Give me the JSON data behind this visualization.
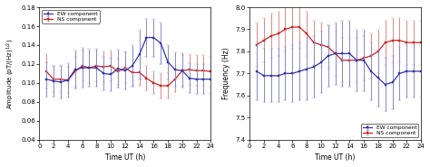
{
  "left": {
    "xlabel": "Time UT (h)",
    "ylabel": "Amplitude (pT/(Hz)¹/²)",
    "ylim": [
      0.04,
      0.18
    ],
    "xlim": [
      0,
      24
    ],
    "yticks": [
      0.04,
      0.06,
      0.08,
      0.1,
      0.12,
      0.14,
      0.16,
      0.18
    ],
    "xticks": [
      0,
      2,
      4,
      6,
      8,
      10,
      12,
      14,
      16,
      18,
      20,
      22,
      24
    ],
    "ew_x": [
      1,
      2,
      3,
      4,
      5,
      6,
      7,
      8,
      9,
      10,
      11,
      12,
      13,
      14,
      15,
      16,
      17,
      18,
      19,
      20,
      21,
      22,
      23,
      24
    ],
    "ew_y": [
      0.104,
      0.102,
      0.101,
      0.103,
      0.114,
      0.116,
      0.116,
      0.116,
      0.11,
      0.109,
      0.115,
      0.113,
      0.118,
      0.13,
      0.148,
      0.148,
      0.142,
      0.122,
      0.114,
      0.113,
      0.105,
      0.104,
      0.104,
      0.104
    ],
    "ew_yerr": [
      0.018,
      0.016,
      0.017,
      0.018,
      0.02,
      0.021,
      0.02,
      0.02,
      0.018,
      0.018,
      0.02,
      0.02,
      0.022,
      0.026,
      0.02,
      0.02,
      0.022,
      0.018,
      0.018,
      0.018,
      0.016,
      0.016,
      0.016,
      0.016
    ],
    "ns_x": [
      1,
      2,
      3,
      4,
      5,
      6,
      7,
      8,
      9,
      10,
      11,
      12,
      13,
      14,
      15,
      16,
      17,
      18,
      19,
      20,
      21,
      22,
      23,
      24
    ],
    "ns_y": [
      0.112,
      0.104,
      0.104,
      0.103,
      0.112,
      0.118,
      0.116,
      0.118,
      0.117,
      0.118,
      0.112,
      0.116,
      0.111,
      0.111,
      0.105,
      0.1,
      0.097,
      0.097,
      0.104,
      0.113,
      0.114,
      0.113,
      0.113,
      0.112
    ],
    "ns_yerr": [
      0.018,
      0.014,
      0.014,
      0.014,
      0.016,
      0.016,
      0.016,
      0.016,
      0.016,
      0.016,
      0.014,
      0.016,
      0.014,
      0.014,
      0.013,
      0.012,
      0.013,
      0.013,
      0.014,
      0.016,
      0.016,
      0.016,
      0.016,
      0.016
    ],
    "ew_color": "#3333aa",
    "ew_ecolor": "#8888cc",
    "ns_color": "#cc2222",
    "ns_ecolor": "#dd8888",
    "legend_loc": "upper left"
  },
  "right": {
    "xlabel": "Time UT (h)",
    "ylabel": "Frequency (Hz)",
    "ylim": [
      7.4,
      8.0
    ],
    "xlim": [
      0,
      24
    ],
    "yticks": [
      7.4,
      7.5,
      7.6,
      7.7,
      7.8,
      7.9,
      8.0
    ],
    "xticks": [
      0,
      2,
      4,
      6,
      8,
      10,
      12,
      14,
      16,
      18,
      20,
      22,
      24
    ],
    "ew_x": [
      1,
      2,
      3,
      4,
      5,
      6,
      7,
      8,
      9,
      10,
      11,
      12,
      13,
      14,
      15,
      16,
      17,
      18,
      19,
      20,
      21,
      22,
      23,
      24
    ],
    "ew_y": [
      7.71,
      7.69,
      7.69,
      7.69,
      7.7,
      7.7,
      7.71,
      7.72,
      7.73,
      7.75,
      7.78,
      7.79,
      7.79,
      7.79,
      7.76,
      7.76,
      7.71,
      7.68,
      7.65,
      7.66,
      7.7,
      7.71,
      7.71,
      7.71
    ],
    "ew_yerr": [
      0.13,
      0.12,
      0.12,
      0.12,
      0.12,
      0.13,
      0.13,
      0.14,
      0.14,
      0.14,
      0.14,
      0.14,
      0.15,
      0.15,
      0.14,
      0.14,
      0.13,
      0.13,
      0.12,
      0.12,
      0.12,
      0.12,
      0.12,
      0.12
    ],
    "ns_x": [
      1,
      2,
      3,
      4,
      5,
      6,
      7,
      8,
      9,
      10,
      11,
      12,
      13,
      14,
      15,
      16,
      17,
      18,
      19,
      20,
      21,
      22,
      23,
      24
    ],
    "ns_y": [
      7.83,
      7.85,
      7.87,
      7.88,
      7.9,
      7.91,
      7.91,
      7.88,
      7.84,
      7.83,
      7.82,
      7.79,
      7.76,
      7.76,
      7.76,
      7.77,
      7.78,
      7.8,
      7.84,
      7.85,
      7.85,
      7.84,
      7.84,
      7.84
    ],
    "ns_yerr": [
      0.1,
      0.1,
      0.1,
      0.1,
      0.1,
      0.1,
      0.1,
      0.1,
      0.1,
      0.1,
      0.1,
      0.1,
      0.1,
      0.1,
      0.1,
      0.1,
      0.1,
      0.1,
      0.1,
      0.1,
      0.1,
      0.1,
      0.1,
      0.1
    ],
    "ew_color": "#3333aa",
    "ew_ecolor": "#8888cc",
    "ns_color": "#cc2222",
    "ns_ecolor": "#dd8888",
    "legend_loc": "lower right"
  },
  "background_color": "#ffffff",
  "fig_facecolor": "#ffffff"
}
